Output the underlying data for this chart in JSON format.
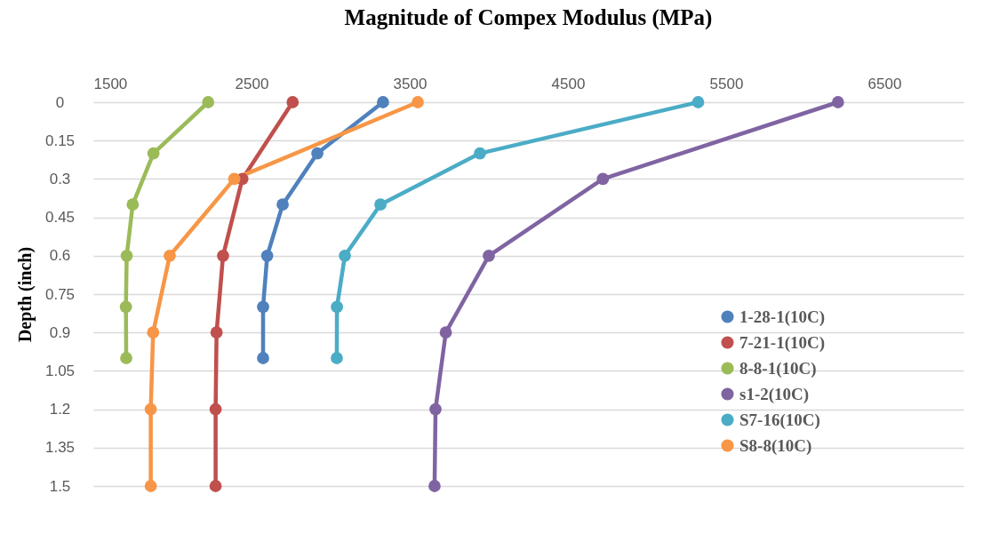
{
  "chart_data": {
    "type": "line",
    "title": "Magnitude of Compex Modulus (MPa)",
    "ylabel": "Depth (inch)",
    "xlim": [
      1500,
      7000
    ],
    "xticks": [
      1500,
      2500,
      3500,
      4500,
      5500,
      6500
    ],
    "ylim": [
      1.5,
      0
    ],
    "yticks": [
      0,
      0.15,
      0.3,
      0.45,
      0.6,
      0.75,
      0.9,
      1.05,
      1.2,
      1.35,
      1.5
    ],
    "grid": "y",
    "legend": "bottom right",
    "marker": "circle",
    "line_style": "solid",
    "series": [
      {
        "name": "1-28-1(10C)",
        "color": "#4f81bd",
        "x": [
          3331,
          2916,
          2697,
          2599,
          2573,
          2573
        ],
        "values": [
          0,
          0.2,
          0.4,
          0.6,
          0.8,
          1.0
        ]
      },
      {
        "name": "7-21-1(10C)",
        "color": "#c0504d",
        "x": [
          2760,
          2442,
          2320,
          2279,
          2273,
          2273
        ],
        "values": [
          0,
          0.3,
          0.6,
          0.9,
          1.2,
          1.5
        ]
      },
      {
        "name": "8-8-1(10C)",
        "color": "#9bbb59",
        "x": [
          2226,
          1880,
          1749,
          1711,
          1706,
          1708
        ],
        "values": [
          0,
          0.2,
          0.4,
          0.6,
          0.8,
          1.0
        ]
      },
      {
        "name": "s1-2(10C)",
        "color": "#8064a2",
        "x": [
          6207,
          4721,
          4000,
          3728,
          3663,
          3657
        ],
        "values": [
          0,
          0.3,
          0.6,
          0.9,
          1.2,
          1.5
        ]
      },
      {
        "name": "S7-16(10C)",
        "color": "#4bacc6",
        "x": [
          5323,
          3944,
          3315,
          3090,
          3040,
          3039
        ],
        "values": [
          0,
          0.2,
          0.4,
          0.6,
          0.8,
          1.0
        ]
      },
      {
        "name": "S8-8(10C)",
        "color": "#f79646",
        "x": [
          3551,
          2391,
          1983,
          1878,
          1863,
          1863
        ],
        "values": [
          0,
          0.3,
          0.6,
          0.9,
          1.2,
          1.5
        ]
      }
    ]
  }
}
